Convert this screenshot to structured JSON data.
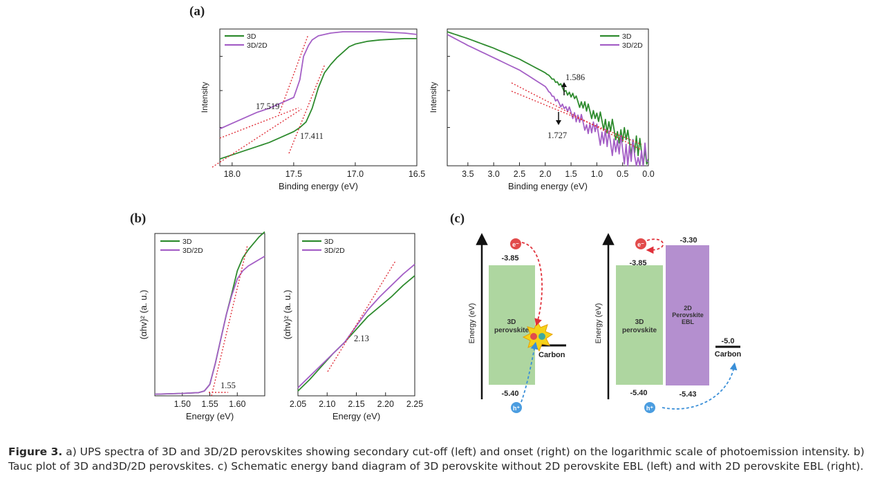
{
  "panel_labels": {
    "a": "(a)",
    "b": "(b)",
    "c": "(c)"
  },
  "colors": {
    "series_3d": "#2e8b2e",
    "series_3d2d": "#a45fc6",
    "fit": "#e0303a",
    "band_3d": "#aed6a0",
    "band_2d": "#b48fcf",
    "electron": "#e24b4b",
    "hole": "#4b9de0"
  },
  "chart_data": [
    {
      "id": "a-left",
      "type": "line",
      "xlabel": "Binding energy (eV)",
      "ylabel": "Intensity",
      "xlim": [
        18.1,
        16.5
      ],
      "reversed_x": true,
      "y_scale": "log",
      "xticks": [
        "18.0",
        "17.5",
        "17.0",
        "16.5"
      ],
      "xtick_values": [
        18.0,
        17.5,
        17.0,
        16.5
      ],
      "ylim": [
        0,
        100
      ],
      "series": [
        {
          "name": "3D",
          "color": "#2e8b2e",
          "x": [
            18.1,
            18.0,
            17.9,
            17.8,
            17.7,
            17.6,
            17.5,
            17.45,
            17.4,
            17.35,
            17.3,
            17.25,
            17.2,
            17.15,
            17.1,
            17.05,
            17.0,
            16.9,
            16.8,
            16.7,
            16.6,
            16.5
          ],
          "y": [
            5,
            8,
            11,
            14,
            17,
            21,
            25,
            28,
            32,
            42,
            57,
            68,
            74,
            79,
            83,
            87,
            89,
            91,
            92,
            92.5,
            93,
            93
          ]
        },
        {
          "name": "3D/2D",
          "color": "#a45fc6",
          "x": [
            18.1,
            18.0,
            17.9,
            17.8,
            17.7,
            17.6,
            17.5,
            17.48,
            17.45,
            17.42,
            17.38,
            17.35,
            17.3,
            17.2,
            17.1,
            17.0,
            16.9,
            16.8,
            16.7,
            16.6,
            16.5
          ],
          "y": [
            27,
            31,
            35,
            39,
            42,
            46,
            50,
            55,
            63,
            80,
            88,
            92,
            95,
            97,
            98,
            98,
            98,
            98,
            97.5,
            97,
            96
          ]
        }
      ],
      "annotations": [
        {
          "text": "17.519"
        },
        {
          "text": "17.411"
        }
      ]
    },
    {
      "id": "a-right",
      "type": "line",
      "xlabel": "Binding energy (eV)",
      "ylabel": "Intensity",
      "xlim": [
        3.9,
        0.0
      ],
      "reversed_x": true,
      "y_scale": "log",
      "xticks": [
        "3.5",
        "3.0",
        "2.5",
        "2.0",
        "1.5",
        "1.0",
        "0.5",
        "0.0"
      ],
      "xtick_values": [
        3.5,
        3.0,
        2.5,
        2.0,
        1.5,
        1.0,
        0.5,
        0.0
      ],
      "ylim": [
        0,
        100
      ],
      "series": [
        {
          "name": "3D",
          "color": "#2e8b2e",
          "x": [
            3.9,
            3.5,
            3.0,
            2.5,
            2.0,
            1.8,
            1.6,
            1.4,
            1.2,
            1.0,
            0.8,
            0.6,
            0.4,
            0.2,
            0.0
          ],
          "y": [
            98,
            93,
            86,
            78,
            68,
            62,
            55,
            48,
            42,
            36,
            30,
            25,
            18,
            12,
            5
          ]
        },
        {
          "name": "3D/2D",
          "color": "#a45fc6",
          "x": [
            3.9,
            3.5,
            3.0,
            2.5,
            2.0,
            1.8,
            1.6,
            1.4,
            1.2,
            1.0,
            0.8,
            0.6,
            0.4,
            0.2,
            0.0
          ],
          "y": [
            96,
            88,
            79,
            70,
            58,
            48,
            42,
            36,
            30,
            24,
            18,
            14,
            10,
            6,
            3
          ]
        }
      ],
      "annotations": [
        {
          "text": "1.586"
        },
        {
          "text": "1.727"
        }
      ]
    },
    {
      "id": "b-left",
      "type": "line",
      "xlabel": "Energy (eV)",
      "ylabel": "(αhv)² (a. u.)",
      "xlim": [
        1.45,
        1.65
      ],
      "xticks": [
        "1.50",
        "1.55",
        "1.60"
      ],
      "xtick_values": [
        1.5,
        1.55,
        1.6
      ],
      "ylim": [
        0,
        100
      ],
      "series": [
        {
          "name": "3D",
          "color": "#2e8b2e",
          "x": [
            1.45,
            1.5,
            1.53,
            1.54,
            1.55,
            1.56,
            1.57,
            1.58,
            1.59,
            1.6,
            1.61,
            1.62,
            1.63,
            1.64,
            1.65
          ],
          "y": [
            1,
            1.5,
            2,
            3,
            7,
            20,
            35,
            50,
            63,
            77,
            85,
            90,
            94,
            98,
            101
          ]
        },
        {
          "name": "3D/2D",
          "color": "#a45fc6",
          "x": [
            1.45,
            1.5,
            1.53,
            1.54,
            1.55,
            1.56,
            1.57,
            1.58,
            1.59,
            1.6,
            1.61,
            1.62,
            1.63,
            1.64,
            1.65
          ],
          "y": [
            1,
            1.5,
            2,
            3,
            7,
            20,
            35,
            50,
            62,
            72,
            77,
            80,
            82,
            84,
            86
          ]
        }
      ],
      "annotations": [
        {
          "text": "1.55"
        }
      ]
    },
    {
      "id": "b-right",
      "type": "line",
      "xlabel": "Energy (eV)",
      "ylabel": "(αhv)² (a. u.)",
      "xlim": [
        2.05,
        2.25
      ],
      "xticks": [
        "2.05",
        "2.10",
        "2.15",
        "2.20",
        "2.25"
      ],
      "xtick_values": [
        2.05,
        2.1,
        2.15,
        2.2,
        2.25
      ],
      "ylim": [
        0,
        100
      ],
      "series": [
        {
          "name": "3D",
          "color": "#2e8b2e",
          "x": [
            2.05,
            2.07,
            2.09,
            2.11,
            2.13,
            2.15,
            2.17,
            2.19,
            2.21,
            2.23,
            2.25
          ],
          "y": [
            3,
            10,
            18,
            26,
            33,
            41,
            49,
            55,
            61,
            68,
            74
          ]
        },
        {
          "name": "3D/2D",
          "color": "#a45fc6",
          "x": [
            2.05,
            2.07,
            2.09,
            2.11,
            2.13,
            2.15,
            2.17,
            2.19,
            2.21,
            2.23,
            2.25
          ],
          "y": [
            5,
            12,
            19,
            26,
            33,
            43,
            53,
            61,
            68,
            75,
            81
          ]
        }
      ],
      "annotations": [
        {
          "text": "2.13"
        }
      ]
    }
  ],
  "diagram_c": {
    "axis_label": "Energy (eV)",
    "left": {
      "band_label": "3D perovskite",
      "top": "-3.85",
      "bottom": "-5.40",
      "carbon": "Carbon",
      "electron": "e⁻",
      "hole": "h⁺"
    },
    "right": {
      "band3d_label": "3D perovskite",
      "band3d_top": "-3.85",
      "band3d_bottom": "-5.40",
      "band2d_label": "2D Perovskite EBL",
      "band2d_top": "-3.30",
      "band2d_bottom": "-5.43",
      "carbon_value": "-5.0",
      "carbon": "Carbon",
      "electron": "e⁻",
      "hole": "h⁺"
    }
  },
  "caption": {
    "label": "Figure 3.",
    "text": "a) UPS spectra of 3D and 3D/2D perovskites showing secondary cut-off (left) and onset (right) on the logarithmic scale of photoemission intensity. b) Tauc plot of 3D and3D/2D perovskites. c) Schematic energy band diagram of 3D perovskite without 2D perovskite EBL (left) and with 2D perovskite EBL (right)."
  }
}
